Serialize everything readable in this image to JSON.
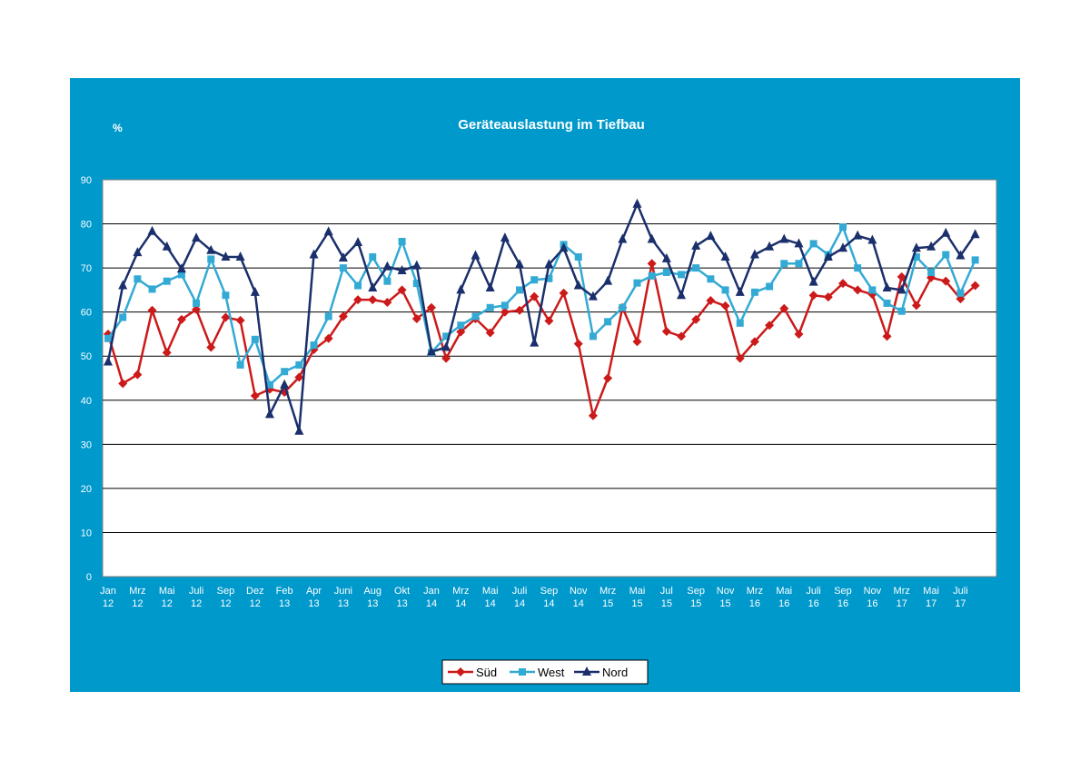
{
  "chart_data": {
    "type": "line",
    "title": "Geräteauslastung im Tiefbau",
    "ylabel": "%",
    "ylim": [
      0,
      90
    ],
    "yticks": [
      0,
      10,
      20,
      30,
      40,
      50,
      60,
      70,
      80,
      90
    ],
    "grid": true,
    "legend_position": "bottom",
    "x_tick_labels": [
      [
        "Jan",
        "12"
      ],
      [
        "Mrz",
        "12"
      ],
      [
        "Mai",
        "12"
      ],
      [
        "Juli",
        "12"
      ],
      [
        "Sep",
        "12"
      ],
      [
        "Dez",
        "12"
      ],
      [
        "Feb",
        "13"
      ],
      [
        "Apr",
        "13"
      ],
      [
        "Juni",
        "13"
      ],
      [
        "Aug",
        "13"
      ],
      [
        "Okt",
        "13"
      ],
      [
        "Jan",
        "14"
      ],
      [
        "Mrz",
        "14"
      ],
      [
        "Mai",
        "14"
      ],
      [
        "Juli",
        "14"
      ],
      [
        "Sep",
        "14"
      ],
      [
        "Nov",
        "14"
      ],
      [
        "Mrz",
        "15"
      ],
      [
        "Mai",
        "15"
      ],
      [
        "Jul",
        "15"
      ],
      [
        "Sep",
        "15"
      ],
      [
        "Nov",
        "15"
      ],
      [
        "Mrz",
        "16"
      ],
      [
        "Mai",
        "16"
      ],
      [
        "Juli",
        "16"
      ],
      [
        "Sep",
        "16"
      ],
      [
        "Nov",
        "16"
      ],
      [
        "Mrz",
        "17"
      ],
      [
        "Mai",
        "17"
      ],
      [
        "Juli",
        "17"
      ]
    ],
    "series": [
      {
        "name": "Süd",
        "color": "#cc1a1a",
        "marker": "diamond",
        "values": [
          55,
          43.8,
          45.8,
          60.4,
          50.8,
          58.3,
          60.6,
          52,
          58.8,
          58.1,
          41,
          42.5,
          41.8,
          45.2,
          51.5,
          54,
          59,
          62.8,
          62.8,
          62.2,
          65,
          58.5,
          61,
          49.5,
          55.5,
          58.5,
          55.3,
          60,
          60.4,
          63.5,
          58,
          64.3,
          52.8,
          36.5,
          45,
          61,
          53.3,
          71,
          55.6,
          54.5,
          58.3,
          62.6,
          61.4,
          49.5,
          53.3,
          57,
          60.8,
          55,
          63.8,
          63.4,
          66.5,
          65,
          64,
          54.5,
          68,
          61.5,
          67.8,
          67,
          63,
          66
        ]
      },
      {
        "name": "West",
        "color": "#33aad4",
        "marker": "square",
        "values": [
          54,
          58.8,
          67.5,
          65.2,
          67,
          68.5,
          62,
          72,
          63.8,
          48,
          53.8,
          43.5,
          46.5,
          48,
          52.5,
          59,
          70,
          66,
          72.5,
          67,
          76,
          66.5,
          50.8,
          54.5,
          57,
          59,
          61,
          61.5,
          65,
          67.3,
          67.6,
          75.3,
          72.5,
          54.5,
          57.8,
          61,
          66.6,
          68.2,
          69,
          68.5,
          70,
          67.5,
          65,
          57.5,
          64.5,
          65.8,
          71,
          71,
          75.5,
          73,
          79.3,
          70,
          65,
          62,
          60.2,
          72.5,
          69,
          73,
          64.3,
          71.8
        ]
      },
      {
        "name": "Nord",
        "color": "#1a2f6b",
        "marker": "triangle",
        "values": [
          48.7,
          66,
          73.5,
          78.3,
          74.8,
          69.8,
          76.8,
          74,
          72.5,
          72.5,
          64.5,
          36.8,
          43.5,
          33,
          73,
          78.2,
          72.3,
          75.8,
          65.5,
          70.3,
          69.4,
          70.5,
          51,
          52,
          65,
          72.8,
          65.5,
          76.8,
          70.8,
          53,
          70.8,
          74.5,
          66,
          63.5,
          67,
          76.5,
          84.5,
          76.5,
          72.1,
          63.8,
          75,
          77.2,
          72.5,
          64.5,
          73,
          74.8,
          76.5,
          75.5,
          66.8,
          72.5,
          74.5,
          77.3,
          76.3,
          65.5,
          65,
          74.5,
          74.8,
          77.9,
          72.8,
          77.6
        ]
      }
    ]
  }
}
